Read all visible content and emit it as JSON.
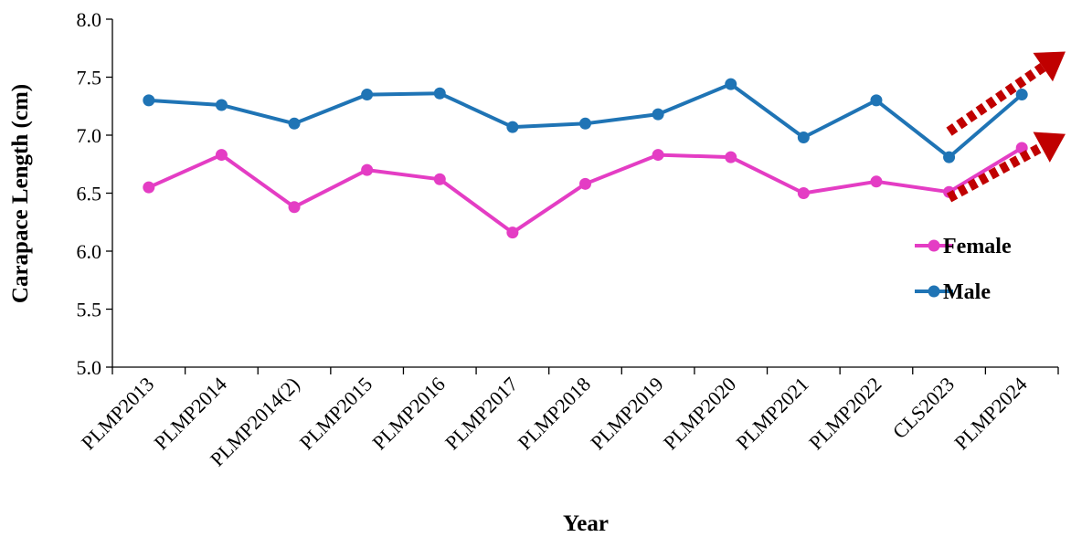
{
  "chart_data": {
    "type": "line",
    "title": "",
    "xlabel": "Year",
    "ylabel": "Carapace Length (cm)",
    "ylim": [
      5.0,
      8.0
    ],
    "yticks": [
      "5.0",
      "5.5",
      "6.0",
      "6.5",
      "7.0",
      "7.5",
      "8.0"
    ],
    "grid": false,
    "legend_position": "right",
    "categories": [
      "PLMP2013",
      "PLMP2014",
      "PLMP2014(2)",
      "PLMP2015",
      "PLMP2016",
      "PLMP2017",
      "PLMP2018",
      "PLMP2019",
      "PLMP2020",
      "PLMP2021",
      "PLMP2022",
      "CLS2023",
      "PLMP2024"
    ],
    "series": [
      {
        "name": "Female",
        "color": "#e43dc4",
        "values": [
          6.55,
          6.83,
          6.38,
          6.7,
          6.62,
          6.16,
          6.58,
          6.83,
          6.81,
          6.5,
          6.6,
          6.51,
          6.89
        ]
      },
      {
        "name": "Male",
        "color": "#1f74b5",
        "values": [
          7.3,
          7.26,
          7.1,
          7.35,
          7.36,
          7.07,
          7.1,
          7.18,
          7.44,
          6.98,
          7.3,
          6.81,
          7.35
        ]
      }
    ],
    "annotations": [
      {
        "type": "dotted-arrow",
        "color": "#c00000",
        "from": [
          "CLS2023",
          7.03
        ],
        "to": [
          "PLMP2024",
          7.72
        ]
      },
      {
        "type": "dotted-arrow",
        "color": "#c00000",
        "from": [
          "CLS2023",
          6.46
        ],
        "to": [
          "PLMP2024",
          7.01
        ]
      }
    ]
  }
}
